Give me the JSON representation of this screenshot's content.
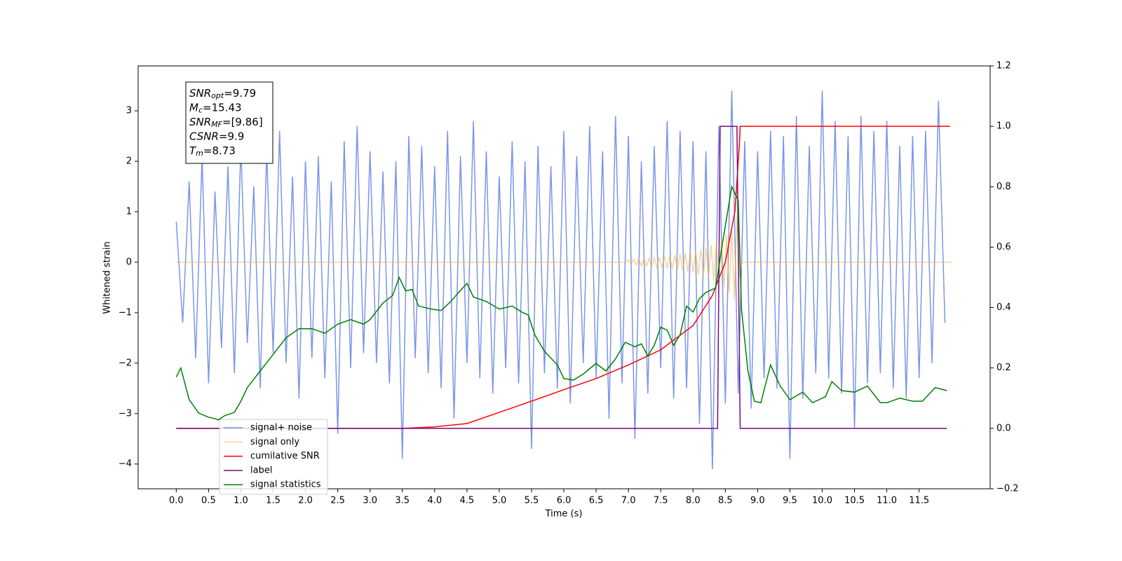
{
  "chart_data": {
    "type": "line",
    "xlabel": "Time (s)",
    "ylabel": "Whitened strain",
    "xlim": [
      -0.59,
      12.6
    ],
    "ylim": [
      -4.49,
      3.89
    ],
    "y2lim": [
      -0.2,
      1.2
    ],
    "xticks": [
      {
        "value": 0,
        "label": "0.0"
      },
      0.5,
      {
        "value": 1,
        "label": "1.0"
      },
      1.5,
      {
        "value": 2,
        "label": "2.0"
      },
      2.5,
      {
        "value": 3,
        "label": "3.0"
      },
      3.5,
      {
        "value": 4,
        "label": "4.0"
      },
      4.5,
      {
        "value": 5,
        "label": "5.0"
      },
      5.5,
      {
        "value": 6,
        "label": "6.0"
      },
      6.5,
      {
        "value": 7,
        "label": "7.0"
      },
      7.5,
      {
        "value": 8,
        "label": "8.0"
      },
      8.5,
      {
        "value": 9,
        "label": "9.0"
      },
      9.5,
      {
        "value": 10,
        "label": "10.0"
      },
      10.5,
      {
        "value": 11,
        "label": "11.0"
      },
      11.5
    ],
    "yticks": [
      {
        "value": -4,
        "label": "−4"
      },
      {
        "value": -3,
        "label": "−3"
      },
      {
        "value": -2,
        "label": "−2"
      },
      {
        "value": -1,
        "label": "−1"
      },
      0,
      1,
      2,
      3
    ],
    "y2ticks": [
      {
        "value": -0.2,
        "label": "−0.2"
      },
      {
        "value": 0,
        "label": "0.0"
      },
      0.2,
      0.4,
      0.6,
      0.8,
      {
        "value": 1,
        "label": "1.0"
      },
      1.2
    ],
    "legend": "lower left",
    "annotations": [
      {
        "main": "SNR",
        "sub": "opt",
        "rest": "=9.79"
      },
      {
        "main": "M",
        "sub": "c",
        "rest": "=15.43"
      },
      {
        "main": "SNR",
        "sub": "MF",
        "rest": "=[9.86]"
      },
      {
        "main": "CSNR",
        "sub": "",
        "rest": "=9.9"
      },
      {
        "main": "T",
        "sub": "m",
        "rest": "=8.73"
      }
    ],
    "series": [
      {
        "name": "signal+ noise",
        "color": "#7a96e8",
        "axis": "y",
        "x": [
          0,
          0.1,
          0.2,
          0.3,
          0.4,
          0.5,
          0.6,
          0.7,
          0.8,
          0.9,
          1,
          1.1,
          1.2,
          1.3,
          1.4,
          1.5,
          1.6,
          1.7,
          1.8,
          1.9,
          2,
          2.1,
          2.2,
          2.3,
          2.4,
          2.5,
          2.6,
          2.7,
          2.8,
          2.9,
          3,
          3.1,
          3.2,
          3.3,
          3.4,
          3.5,
          3.6,
          3.7,
          3.8,
          3.9,
          4,
          4.1,
          4.2,
          4.3,
          4.4,
          4.5,
          4.6,
          4.7,
          4.8,
          4.9,
          5,
          5.1,
          5.2,
          5.3,
          5.4,
          5.5,
          5.6,
          5.7,
          5.8,
          5.9,
          6,
          6.1,
          6.2,
          6.3,
          6.4,
          6.5,
          6.6,
          6.7,
          6.8,
          6.9,
          7,
          7.1,
          7.2,
          7.3,
          7.4,
          7.5,
          7.6,
          7.7,
          7.8,
          7.9,
          8,
          8.1,
          8.2,
          8.3,
          8.4,
          8.5,
          8.6,
          8.7,
          8.8,
          8.9,
          9,
          9.1,
          9.2,
          9.3,
          9.4,
          9.5,
          9.6,
          9.7,
          9.8,
          9.9,
          10,
          10.1,
          10.2,
          10.3,
          10.4,
          10.5,
          10.6,
          10.7,
          10.8,
          10.9,
          11,
          11.1,
          11.2,
          11.3,
          11.4,
          11.5,
          11.6,
          11.7,
          11.8,
          11.9
        ],
        "values": [
          0.8,
          -1.2,
          1.6,
          -1.9,
          2.1,
          -2.4,
          1.4,
          -1.7,
          1.9,
          -2.2,
          2.3,
          -1.6,
          1.5,
          -2.5,
          2.2,
          -1.8,
          2.6,
          -2.0,
          1.7,
          -2.7,
          2.0,
          -1.9,
          2.1,
          -2.3,
          1.6,
          -3.4,
          2.4,
          -2.1,
          2.7,
          -1.8,
          2.2,
          -2.0,
          1.8,
          -2.4,
          2.0,
          -3.9,
          2.5,
          -1.9,
          2.3,
          -2.2,
          1.9,
          -2.5,
          2.6,
          -3.1,
          2.1,
          -2.0,
          2.8,
          -2.3,
          2.2,
          -2.6,
          1.7,
          -2.1,
          2.4,
          -2.4,
          2.0,
          -3.7,
          2.3,
          -2.2,
          1.9,
          -2.5,
          2.6,
          -2.8,
          2.1,
          -2.0,
          2.7,
          -2.3,
          2.2,
          -3.1,
          2.9,
          -2.4,
          2.5,
          -3.5,
          2.0,
          -2.6,
          2.3,
          -2.1,
          2.8,
          -2.7,
          2.6,
          -2.5,
          2.4,
          -3.2,
          2.2,
          -4.1,
          2.7,
          -2.8,
          3.4,
          -2.6,
          2.4,
          -2.9,
          2.2,
          -2.3,
          2.6,
          -2.5,
          2.5,
          -3.9,
          2.9,
          -2.7,
          2.3,
          -2.2,
          3.4,
          -2.3,
          2.8,
          -2.6,
          2.5,
          -3.3,
          2.9,
          -2.4,
          2.6,
          -2.2,
          2.8,
          -2.5,
          2.3,
          -2.7,
          2.5,
          -2.3,
          2.6,
          -2.0,
          3.2,
          -1.2
        ]
      },
      {
        "name": "signal only",
        "color": "#f5b041",
        "axis": "y",
        "x": [
          0,
          6.96,
          7.0,
          7.04,
          7.08,
          7.12,
          7.16,
          7.2,
          7.24,
          7.28,
          7.32,
          7.36,
          7.4,
          7.44,
          7.48,
          7.52,
          7.56,
          7.6,
          7.64,
          7.68,
          7.72,
          7.76,
          7.8,
          7.84,
          7.88,
          7.92,
          7.96,
          8.0,
          8.04,
          8.08,
          8.12,
          8.16,
          8.2,
          8.24,
          8.28,
          8.32,
          8.36,
          8.4,
          8.44,
          8.48,
          8.52,
          8.56,
          8.6,
          8.64,
          8.68,
          8.72,
          8.76,
          12
        ],
        "values": [
          0,
          0,
          0.05,
          -0.05,
          0.06,
          -0.06,
          0.06,
          -0.07,
          0.07,
          -0.08,
          0.08,
          -0.09,
          0.09,
          -0.1,
          0.1,
          -0.11,
          0.11,
          -0.12,
          0.13,
          -0.13,
          0.14,
          -0.15,
          0.16,
          -0.17,
          0.18,
          -0.19,
          0.2,
          -0.21,
          0.22,
          -0.24,
          0.25,
          -0.27,
          0.29,
          -0.31,
          0.33,
          -0.36,
          0.39,
          -0.42,
          0.45,
          -0.5,
          0.55,
          -0.6,
          0.65,
          -0.75,
          0.9,
          -0.3,
          0,
          0
        ]
      },
      {
        "name": "cumilative SNR",
        "color": "#ff0000",
        "axis": "y2",
        "x": [
          0,
          3.5,
          4.0,
          4.5,
          5.0,
          5.5,
          6.0,
          6.5,
          7.0,
          7.5,
          8.0,
          8.3,
          8.5,
          8.65,
          8.72,
          8.73,
          11.98
        ],
        "values": [
          0,
          0,
          0.005,
          0.016,
          0.053,
          0.09,
          0.128,
          0.165,
          0.21,
          0.26,
          0.34,
          0.44,
          0.55,
          0.72,
          0.95,
          1.0,
          1.0
        ]
      },
      {
        "name": "label",
        "color": "#7b0a7b",
        "axis": "y2",
        "x": [
          0,
          8.38,
          8.42,
          8.68,
          8.73,
          11.93
        ],
        "values": [
          0,
          0,
          1,
          1,
          0,
          0
        ]
      },
      {
        "name": "signal statistics",
        "color": "#008000",
        "axis": "y2",
        "x": [
          0,
          0.07,
          0.2,
          0.35,
          0.5,
          0.6,
          0.65,
          0.75,
          0.9,
          1.0,
          1.1,
          1.3,
          1.5,
          1.7,
          1.9,
          2.1,
          2.3,
          2.5,
          2.7,
          2.9,
          3.0,
          3.2,
          3.35,
          3.45,
          3.55,
          3.65,
          3.75,
          3.95,
          4.1,
          4.25,
          4.35,
          4.5,
          4.6,
          4.8,
          5.0,
          5.2,
          5.35,
          5.45,
          5.55,
          5.7,
          5.9,
          6.0,
          6.15,
          6.3,
          6.5,
          6.65,
          6.8,
          6.95,
          7.1,
          7.2,
          7.3,
          7.4,
          7.5,
          7.6,
          7.7,
          7.8,
          7.9,
          8.0,
          8.1,
          8.2,
          8.35,
          8.45,
          8.55,
          8.6,
          8.7,
          8.75,
          8.85,
          8.95,
          9.05,
          9.2,
          9.35,
          9.5,
          9.7,
          9.85,
          10.05,
          10.15,
          10.3,
          10.5,
          10.7,
          10.9,
          11.0,
          11.2,
          11.4,
          11.55,
          11.75,
          11.93
        ],
        "values": [
          0.17,
          0.2,
          0.095,
          0.05,
          0.037,
          0.032,
          0.028,
          0.042,
          0.053,
          0.09,
          0.135,
          0.19,
          0.245,
          0.3,
          0.33,
          0.33,
          0.315,
          0.345,
          0.36,
          0.345,
          0.36,
          0.415,
          0.44,
          0.5,
          0.455,
          0.46,
          0.405,
          0.395,
          0.39,
          0.42,
          0.445,
          0.48,
          0.435,
          0.42,
          0.395,
          0.405,
          0.385,
          0.375,
          0.31,
          0.255,
          0.21,
          0.165,
          0.16,
          0.18,
          0.215,
          0.19,
          0.23,
          0.285,
          0.27,
          0.28,
          0.24,
          0.275,
          0.335,
          0.325,
          0.275,
          0.31,
          0.405,
          0.385,
          0.43,
          0.45,
          0.465,
          0.605,
          0.735,
          0.8,
          0.755,
          0.395,
          0.19,
          0.09,
          0.085,
          0.21,
          0.14,
          0.095,
          0.12,
          0.085,
          0.105,
          0.155,
          0.125,
          0.12,
          0.14,
          0.085,
          0.085,
          0.1,
          0.09,
          0.09,
          0.135,
          0.125
        ]
      }
    ]
  }
}
